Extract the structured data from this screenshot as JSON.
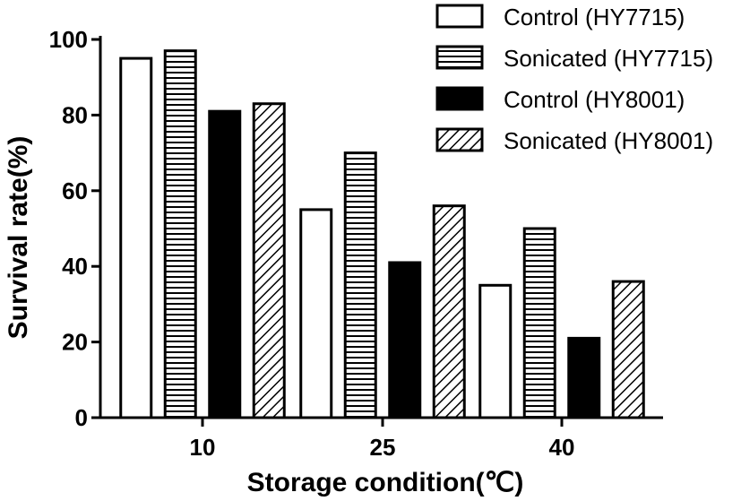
{
  "chart_data": {
    "type": "bar",
    "categories": [
      "10",
      "25",
      "40"
    ],
    "series": [
      {
        "name": "Control (HY7715)",
        "values": [
          95,
          55,
          35
        ],
        "pattern": "blank"
      },
      {
        "name": "Sonicated (HY7715)",
        "values": [
          97,
          70,
          50
        ],
        "pattern": "horizontal-stripes"
      },
      {
        "name": "Control (HY8001)",
        "values": [
          81,
          41,
          21
        ],
        "pattern": "solid"
      },
      {
        "name": "Sonicated (HY8001)",
        "values": [
          83,
          56,
          36
        ],
        "pattern": "diagonal-stripes"
      }
    ],
    "xlabel": "Storage condition(℃)",
    "ylabel": "Survival rate(%)",
    "ylim": [
      0,
      100
    ],
    "yticks": [
      "0",
      "20",
      "40",
      "60",
      "80",
      "100"
    ],
    "grid": false,
    "legend_position": "top-right",
    "colors": {
      "outline": "#000000",
      "fill": "#ffffff",
      "solid": "#000000"
    }
  }
}
